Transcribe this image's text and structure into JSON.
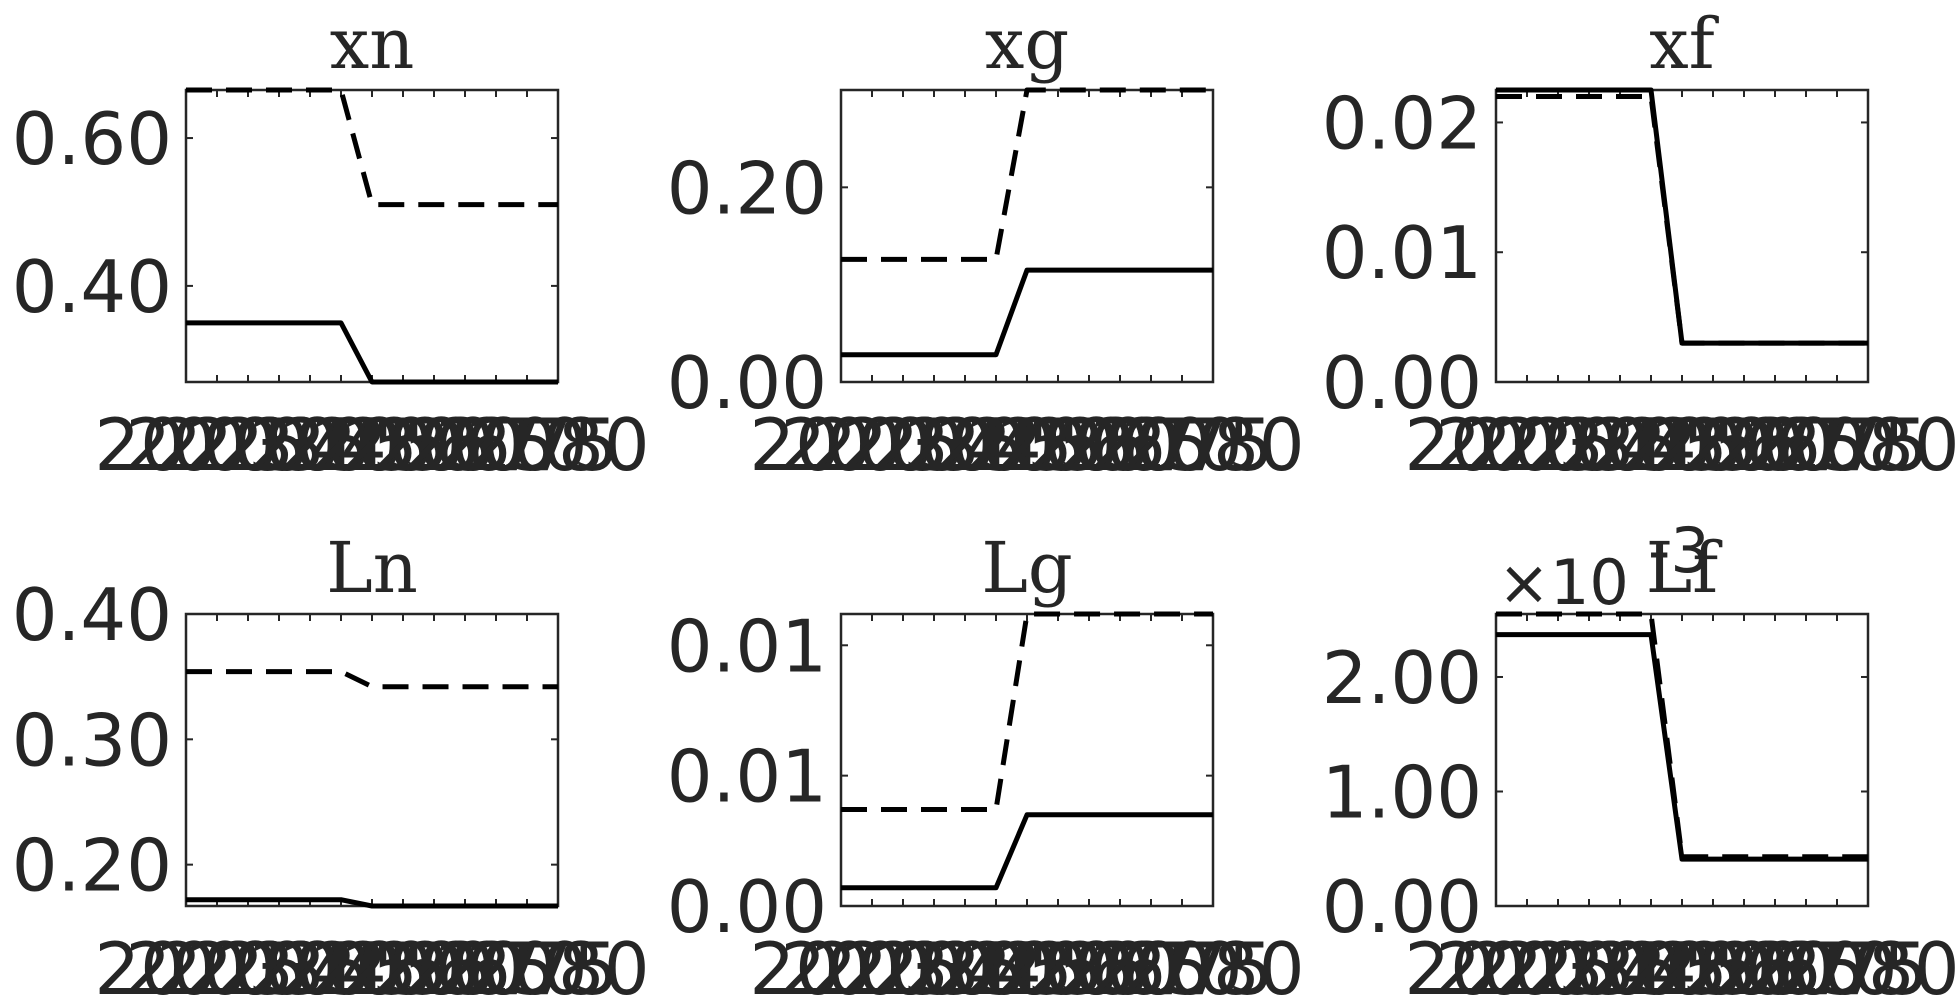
{
  "chart_data": [
    {
      "type": "line",
      "title": "xn",
      "x": [
        2020,
        2025,
        2030,
        2035,
        2040,
        2045,
        2050,
        2055,
        2060,
        2065,
        2070,
        2075,
        2080
      ],
      "x_tick_labels": [
        "2020",
        "2025",
        "2030",
        "2035",
        "2040",
        "2045",
        "2050",
        "2055",
        "2060",
        "2065",
        "2070",
        "2075",
        "2080"
      ],
      "ylim": [
        0.27,
        0.665
      ],
      "y_ticks": [
        0.4,
        0.6
      ],
      "y_tick_labels": [
        "0.40",
        "0.60"
      ],
      "series": [
        {
          "style": "solid",
          "values": [
            0.35,
            0.35,
            0.35,
            0.35,
            0.35,
            0.35,
            0.27,
            0.27,
            0.27,
            0.27,
            0.27,
            0.27,
            0.27
          ]
        },
        {
          "style": "dashed",
          "values": [
            0.665,
            0.665,
            0.665,
            0.665,
            0.665,
            0.665,
            0.51,
            0.51,
            0.51,
            0.51,
            0.51,
            0.51,
            0.51
          ]
        }
      ]
    },
    {
      "type": "line",
      "title": "xg",
      "x": [
        2020,
        2025,
        2030,
        2035,
        2040,
        2045,
        2050,
        2055,
        2060,
        2065,
        2070,
        2075,
        2080
      ],
      "x_tick_labels": [
        "2020",
        "2025",
        "2030",
        "2035",
        "2040",
        "2045",
        "2050",
        "2055",
        "2060",
        "2065",
        "2070",
        "2075",
        "2080"
      ],
      "ylim": [
        0.0,
        0.3
      ],
      "y_ticks": [
        0.0,
        0.2
      ],
      "y_tick_labels": [
        "0.00",
        "0.20"
      ],
      "series": [
        {
          "style": "solid",
          "values": [
            0.028,
            0.028,
            0.028,
            0.028,
            0.028,
            0.028,
            0.115,
            0.115,
            0.115,
            0.115,
            0.115,
            0.115,
            0.115
          ]
        },
        {
          "style": "dashed",
          "values": [
            0.126,
            0.126,
            0.126,
            0.126,
            0.126,
            0.126,
            0.3,
            0.3,
            0.3,
            0.3,
            0.3,
            0.3,
            0.3
          ]
        }
      ]
    },
    {
      "type": "line",
      "title": "xf",
      "x": [
        2020,
        2025,
        2030,
        2035,
        2040,
        2045,
        2050,
        2055,
        2060,
        2065,
        2070,
        2075,
        2080
      ],
      "x_tick_labels": [
        "2020",
        "2025",
        "2030",
        "2035",
        "2040",
        "2045",
        "2050",
        "2055",
        "2060",
        "2065",
        "2070",
        "2075",
        "2080"
      ],
      "ylim": [
        0.0,
        0.0225
      ],
      "y_ticks": [
        0.0,
        0.01,
        0.02
      ],
      "y_tick_labels": [
        "0.00",
        "0.01",
        "0.02"
      ],
      "series": [
        {
          "style": "solid",
          "values": [
            0.0225,
            0.0225,
            0.0225,
            0.0225,
            0.0225,
            0.0225,
            0.003,
            0.003,
            0.003,
            0.003,
            0.003,
            0.003,
            0.003
          ]
        },
        {
          "style": "dashed",
          "values": [
            0.022,
            0.022,
            0.022,
            0.022,
            0.022,
            0.022,
            0.003,
            0.003,
            0.003,
            0.003,
            0.003,
            0.003,
            0.003
          ]
        }
      ]
    },
    {
      "type": "line",
      "title": "Ln",
      "x": [
        2020,
        2025,
        2030,
        2035,
        2040,
        2045,
        2050,
        2055,
        2060,
        2065,
        2070,
        2075,
        2080
      ],
      "x_tick_labels": [
        "2020",
        "2025",
        "2030",
        "2035",
        "2040",
        "2045",
        "2050",
        "2055",
        "2060",
        "2065",
        "2070",
        "2075",
        "2080"
      ],
      "ylim": [
        0.167,
        0.4
      ],
      "y_ticks": [
        0.2,
        0.3,
        0.4
      ],
      "y_tick_labels": [
        "0.20",
        "0.30",
        "0.40"
      ],
      "series": [
        {
          "style": "solid",
          "values": [
            0.172,
            0.172,
            0.172,
            0.172,
            0.172,
            0.172,
            0.167,
            0.167,
            0.167,
            0.167,
            0.167,
            0.167,
            0.167
          ]
        },
        {
          "style": "dashed",
          "values": [
            0.354,
            0.354,
            0.354,
            0.354,
            0.354,
            0.354,
            0.342,
            0.342,
            0.342,
            0.342,
            0.342,
            0.342,
            0.342
          ]
        }
      ]
    },
    {
      "type": "line",
      "title": "Lg",
      "x": [
        2020,
        2025,
        2030,
        2035,
        2040,
        2045,
        2050,
        2055,
        2060,
        2065,
        2070,
        2075,
        2080
      ],
      "x_tick_labels": [
        "2020",
        "2025",
        "2030",
        "2035",
        "2040",
        "2045",
        "2050",
        "2055",
        "2060",
        "2065",
        "2070",
        "2075",
        "2080"
      ],
      "ylim": [
        0.0,
        0.0112
      ],
      "y_ticks": [
        0.0,
        0.005,
        0.01
      ],
      "y_tick_labels": [
        "0.00",
        "0.01",
        "0.01"
      ],
      "series": [
        {
          "style": "solid",
          "values": [
            0.0007,
            0.0007,
            0.0007,
            0.0007,
            0.0007,
            0.0007,
            0.0035,
            0.0035,
            0.0035,
            0.0035,
            0.0035,
            0.0035,
            0.0035
          ]
        },
        {
          "style": "dashed",
          "values": [
            0.0037,
            0.0037,
            0.0037,
            0.0037,
            0.0037,
            0.0037,
            0.0112,
            0.0112,
            0.0112,
            0.0112,
            0.0112,
            0.0112,
            0.0112
          ]
        }
      ]
    },
    {
      "type": "line",
      "title": "Lf",
      "multiplier_label": "×10",
      "multiplier_exponent": "-3",
      "x": [
        2020,
        2025,
        2030,
        2035,
        2040,
        2045,
        2050,
        2055,
        2060,
        2065,
        2070,
        2075,
        2080
      ],
      "x_tick_labels": [
        "2020",
        "2025",
        "2030",
        "2035",
        "2040",
        "2045",
        "2050",
        "2055",
        "2060",
        "2065",
        "2070",
        "2075",
        "2080"
      ],
      "ylim": [
        0.0,
        0.00255
      ],
      "y_ticks": [
        0.0,
        0.001,
        0.002
      ],
      "y_tick_labels": [
        "0.00",
        "1.00",
        "2.00"
      ],
      "series": [
        {
          "style": "solid",
          "values": [
            0.00237,
            0.00237,
            0.00237,
            0.00237,
            0.00237,
            0.00237,
            0.00041,
            0.00041,
            0.00041,
            0.00041,
            0.00041,
            0.00041,
            0.00041
          ]
        },
        {
          "style": "dashed",
          "values": [
            0.00255,
            0.00255,
            0.00255,
            0.00255,
            0.00255,
            0.00255,
            0.00043,
            0.00043,
            0.00043,
            0.00043,
            0.00043,
            0.00043,
            0.00043
          ]
        }
      ]
    }
  ]
}
